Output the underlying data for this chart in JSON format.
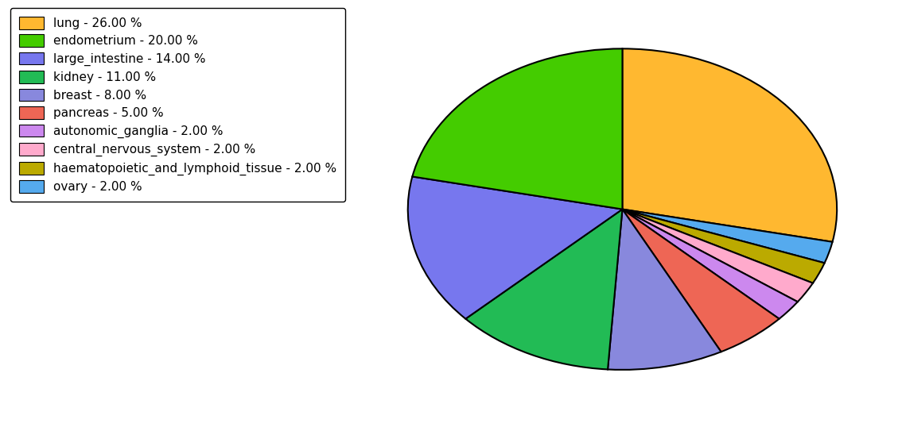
{
  "labels": [
    "lung",
    "ovary",
    "haematopoietic_and_lymphoid_tissue",
    "central_nervous_system",
    "autonomic_ganglia",
    "pancreas",
    "breast",
    "kidney",
    "large_intestine",
    "endometrium"
  ],
  "values": [
    26.0,
    2.0,
    2.0,
    2.0,
    2.0,
    5.0,
    8.0,
    11.0,
    14.0,
    20.0
  ],
  "colors": [
    "#FFB830",
    "#55AAEE",
    "#BBAA00",
    "#FFAACC",
    "#CC88EE",
    "#EE6655",
    "#8888DD",
    "#22BB55",
    "#7777EE",
    "#44CC00"
  ],
  "legend_labels": [
    "lung - 26.00 %",
    "endometrium - 20.00 %",
    "large_intestine - 14.00 %",
    "kidney - 11.00 %",
    "breast - 8.00 %",
    "pancreas - 5.00 %",
    "autonomic_ganglia - 2.00 %",
    "central_nervous_system - 2.00 %",
    "haematopoietic_and_lymphoid_tissue - 2.00 %",
    "ovary - 2.00 %"
  ],
  "legend_colors": [
    "#FFB830",
    "#44CC00",
    "#7777EE",
    "#22BB55",
    "#8888DD",
    "#EE6655",
    "#CC88EE",
    "#FFAACC",
    "#BBAA00",
    "#55AAEE"
  ],
  "background_color": "#ffffff",
  "startangle": 90,
  "figsize": [
    11.34,
    5.38
  ],
  "dpi": 100
}
